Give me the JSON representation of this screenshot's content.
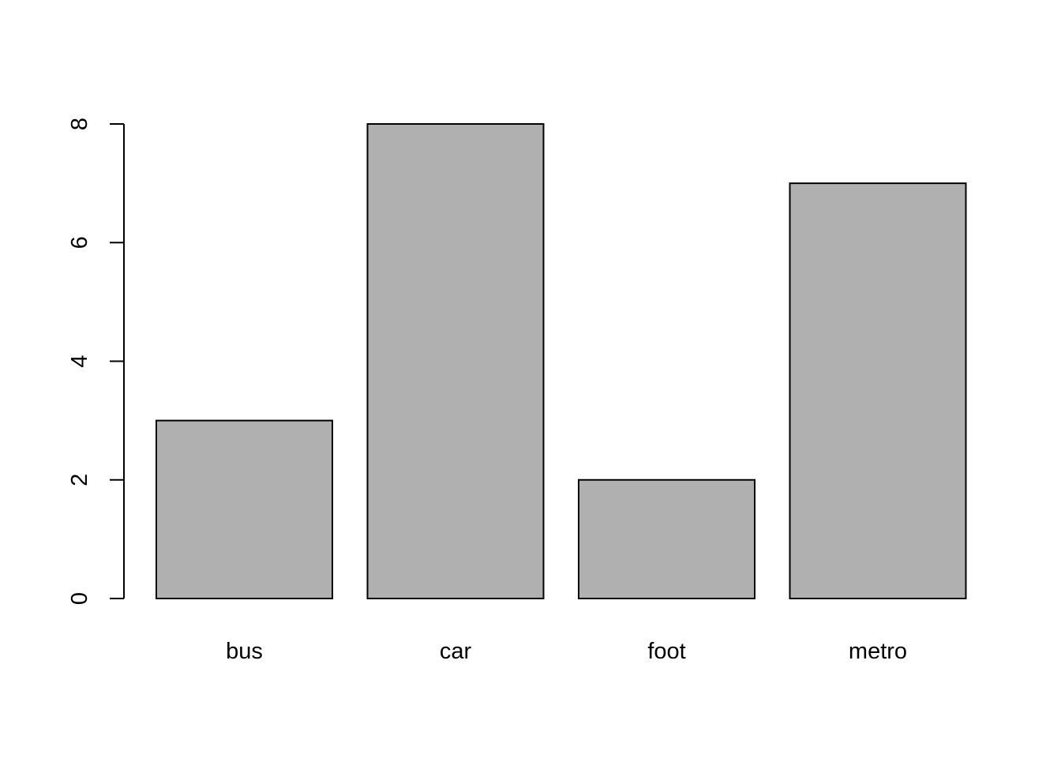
{
  "chart_data": {
    "type": "bar",
    "categories": [
      "bus",
      "car",
      "foot",
      "metro"
    ],
    "values": [
      3,
      8,
      2,
      7
    ],
    "title": "",
    "xlabel": "",
    "ylabel": "",
    "ylim": [
      0,
      8
    ],
    "yticks": [
      0,
      2,
      4,
      6,
      8
    ],
    "grid": false,
    "legend": "none",
    "bar_color": "#b0b0b0",
    "edge_color": "#000000"
  }
}
